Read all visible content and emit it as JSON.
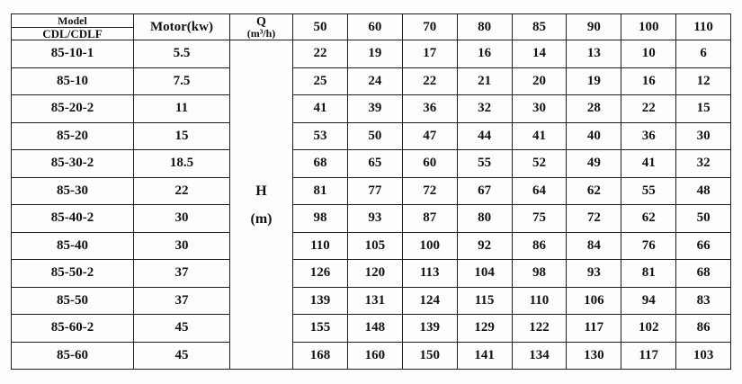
{
  "table": {
    "header": {
      "model_title": "Model",
      "model_subtitle": "CDL/CDLF",
      "motor_label": "Motor(kw)",
      "flow_symbol": "Q",
      "flow_unit": "(m³/h)",
      "flow_columns": [
        "50",
        "60",
        "70",
        "80",
        "85",
        "90",
        "100",
        "110"
      ]
    },
    "head_cell": {
      "symbol": "H",
      "unit": "(m)"
    },
    "rows": [
      {
        "model": "85-10-1",
        "motor": "5.5",
        "values": [
          "22",
          "19",
          "17",
          "16",
          "14",
          "13",
          "10",
          "6"
        ]
      },
      {
        "model": "85-10",
        "motor": "7.5",
        "values": [
          "25",
          "24",
          "22",
          "21",
          "20",
          "19",
          "16",
          "12"
        ]
      },
      {
        "model": "85-20-2",
        "motor": "11",
        "values": [
          "41",
          "39",
          "36",
          "32",
          "30",
          "28",
          "22",
          "15"
        ]
      },
      {
        "model": "85-20",
        "motor": "15",
        "values": [
          "53",
          "50",
          "47",
          "44",
          "41",
          "40",
          "36",
          "30"
        ]
      },
      {
        "model": "85-30-2",
        "motor": "18.5",
        "values": [
          "68",
          "65",
          "60",
          "55",
          "52",
          "49",
          "41",
          "32"
        ]
      },
      {
        "model": "85-30",
        "motor": "22",
        "values": [
          "81",
          "77",
          "72",
          "67",
          "64",
          "62",
          "55",
          "48"
        ]
      },
      {
        "model": "85-40-2",
        "motor": "30",
        "values": [
          "98",
          "93",
          "87",
          "80",
          "75",
          "72",
          "62",
          "50"
        ]
      },
      {
        "model": "85-40",
        "motor": "30",
        "values": [
          "110",
          "105",
          "100",
          "92",
          "86",
          "84",
          "76",
          "66"
        ]
      },
      {
        "model": "85-50-2",
        "motor": "37",
        "values": [
          "126",
          "120",
          "113",
          "104",
          "98",
          "93",
          "81",
          "68"
        ]
      },
      {
        "model": "85-50",
        "motor": "37",
        "values": [
          "139",
          "131",
          "124",
          "115",
          "110",
          "106",
          "94",
          "83"
        ]
      },
      {
        "model": "85-60-2",
        "motor": "45",
        "values": [
          "155",
          "148",
          "139",
          "129",
          "122",
          "117",
          "102",
          "86"
        ]
      },
      {
        "model": "85-60",
        "motor": "45",
        "values": [
          "168",
          "160",
          "150",
          "141",
          "134",
          "130",
          "117",
          "103"
        ]
      }
    ]
  }
}
